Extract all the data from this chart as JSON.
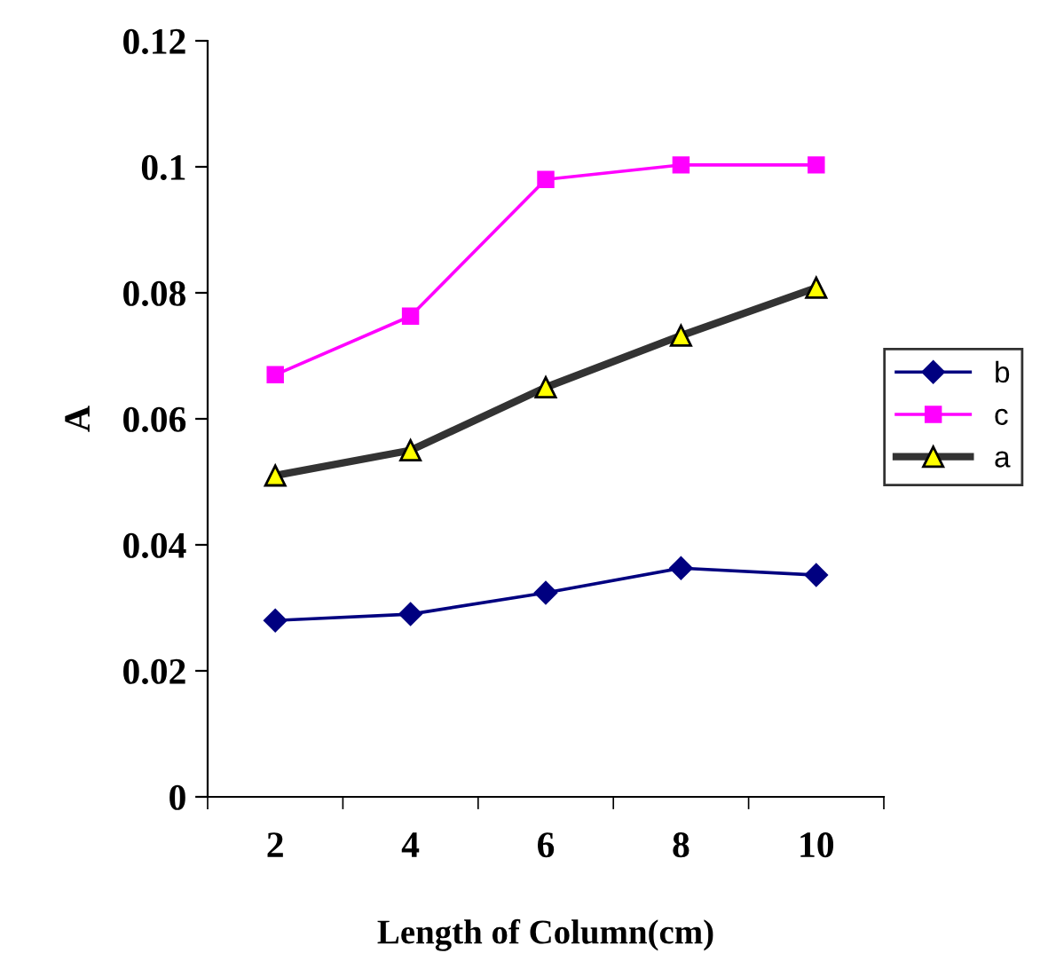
{
  "chart_data": {
    "type": "line",
    "xlabel": "Length of Column(cm)",
    "ylabel": "A",
    "categories": [
      "2",
      "4",
      "6",
      "8",
      "10"
    ],
    "ylim": [
      0,
      0.12
    ],
    "yticks": [
      {
        "value": 0,
        "label": "0"
      },
      {
        "value": 0.02,
        "label": "0.02"
      },
      {
        "value": 0.04,
        "label": "0.04"
      },
      {
        "value": 0.06,
        "label": "0.06"
      },
      {
        "value": 0.08,
        "label": "0.08"
      },
      {
        "value": 0.1,
        "label": "0.1"
      },
      {
        "value": 0.12,
        "label": "0.12"
      }
    ],
    "grid": false,
    "legend": "right",
    "series": [
      {
        "name": "b",
        "color": "#000080",
        "marker": "diamond",
        "values": [
          0.028,
          0.029,
          0.0324,
          0.0363,
          0.0352
        ]
      },
      {
        "name": "c",
        "color": "#ff00ff",
        "marker": "square",
        "values": [
          0.067,
          0.0763,
          0.098,
          0.1003,
          0.1003
        ]
      },
      {
        "name": "a",
        "color": "#333333",
        "marker": "triangle",
        "values": [
          0.051,
          0.055,
          0.065,
          0.0732,
          0.0808
        ]
      }
    ]
  }
}
